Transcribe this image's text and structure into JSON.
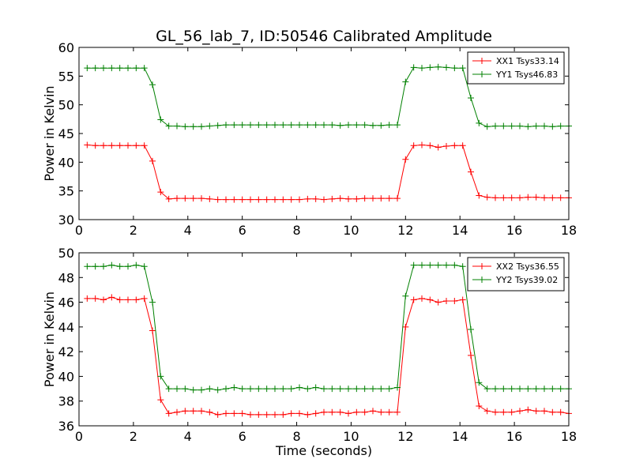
{
  "figure": {
    "title": "GL_56_lab_7, ID:50546 Calibrated Amplitude"
  },
  "chart_data": [
    {
      "type": "line",
      "title": "GL_56_lab_7, ID:50546 Calibrated Amplitude",
      "xlabel": "",
      "ylabel": "Power in Kelvin",
      "xlim": [
        0,
        18
      ],
      "ylim": [
        30,
        60
      ],
      "xticks": [
        0,
        2,
        4,
        6,
        8,
        10,
        12,
        14,
        16,
        18
      ],
      "yticks": [
        30,
        35,
        40,
        45,
        50,
        55,
        60
      ],
      "grid": false,
      "legend": "top-right",
      "x": [
        0.3,
        0.6,
        0.9,
        1.2,
        1.5,
        1.8,
        2.1,
        2.4,
        2.7,
        3.0,
        3.3,
        3.6,
        3.9,
        4.2,
        4.5,
        4.8,
        5.1,
        5.4,
        5.7,
        6.0,
        6.3,
        6.6,
        6.9,
        7.2,
        7.5,
        7.8,
        8.1,
        8.4,
        8.7,
        9.0,
        9.3,
        9.6,
        9.9,
        10.2,
        10.5,
        10.8,
        11.1,
        11.4,
        11.7,
        12.0,
        12.3,
        12.6,
        12.9,
        13.2,
        13.5,
        13.8,
        14.1,
        14.4,
        14.7,
        15.0,
        15.3,
        15.6,
        15.9,
        16.2,
        16.5,
        16.8,
        17.1,
        17.4,
        17.7,
        18.0
      ],
      "series": [
        {
          "name": "XX1 Tsys33.14",
          "color": "#ff0000",
          "values": [
            43.0,
            42.9,
            42.9,
            42.9,
            42.9,
            42.9,
            42.9,
            42.9,
            40.2,
            34.8,
            33.6,
            33.7,
            33.7,
            33.7,
            33.7,
            33.6,
            33.5,
            33.5,
            33.5,
            33.5,
            33.5,
            33.5,
            33.5,
            33.5,
            33.5,
            33.5,
            33.5,
            33.6,
            33.6,
            33.5,
            33.6,
            33.7,
            33.6,
            33.6,
            33.7,
            33.7,
            33.7,
            33.7,
            33.7,
            40.5,
            42.9,
            43.0,
            42.9,
            42.6,
            42.8,
            42.9,
            42.9,
            38.3,
            34.2,
            33.9,
            33.8,
            33.8,
            33.8,
            33.8,
            33.9,
            33.9,
            33.8,
            33.8,
            33.8,
            33.8
          ]
        },
        {
          "name": "YY1 Tsys46.83",
          "color": "#008000",
          "values": [
            56.4,
            56.4,
            56.4,
            56.4,
            56.4,
            56.4,
            56.4,
            56.4,
            53.5,
            47.4,
            46.3,
            46.3,
            46.2,
            46.2,
            46.2,
            46.3,
            46.4,
            46.5,
            46.5,
            46.5,
            46.5,
            46.5,
            46.5,
            46.5,
            46.5,
            46.5,
            46.5,
            46.5,
            46.5,
            46.5,
            46.5,
            46.4,
            46.5,
            46.5,
            46.5,
            46.4,
            46.4,
            46.5,
            46.5,
            54.0,
            56.5,
            56.4,
            56.5,
            56.6,
            56.5,
            56.4,
            56.4,
            51.2,
            46.8,
            46.2,
            46.3,
            46.3,
            46.3,
            46.3,
            46.2,
            46.3,
            46.3,
            46.2,
            46.3,
            46.3
          ]
        }
      ]
    },
    {
      "type": "line",
      "xlabel": "Time (seconds)",
      "ylabel": "Power in Kelvin",
      "xlim": [
        0,
        18
      ],
      "ylim": [
        36,
        50
      ],
      "xticks": [
        0,
        2,
        4,
        6,
        8,
        10,
        12,
        14,
        16,
        18
      ],
      "yticks": [
        36,
        38,
        40,
        42,
        44,
        46,
        48,
        50
      ],
      "grid": false,
      "legend": "top-right",
      "x": [
        0.3,
        0.6,
        0.9,
        1.2,
        1.5,
        1.8,
        2.1,
        2.4,
        2.7,
        3.0,
        3.3,
        3.6,
        3.9,
        4.2,
        4.5,
        4.8,
        5.1,
        5.4,
        5.7,
        6.0,
        6.3,
        6.6,
        6.9,
        7.2,
        7.5,
        7.8,
        8.1,
        8.4,
        8.7,
        9.0,
        9.3,
        9.6,
        9.9,
        10.2,
        10.5,
        10.8,
        11.1,
        11.4,
        11.7,
        12.0,
        12.3,
        12.6,
        12.9,
        13.2,
        13.5,
        13.8,
        14.1,
        14.4,
        14.7,
        15.0,
        15.3,
        15.6,
        15.9,
        16.2,
        16.5,
        16.8,
        17.1,
        17.4,
        17.7,
        18.0
      ],
      "series": [
        {
          "name": "XX2 Tsys36.55",
          "color": "#ff0000",
          "values": [
            46.3,
            46.3,
            46.2,
            46.4,
            46.2,
            46.2,
            46.2,
            46.3,
            43.7,
            38.1,
            37.0,
            37.1,
            37.2,
            37.2,
            37.2,
            37.1,
            36.9,
            37.0,
            37.0,
            37.0,
            36.9,
            36.9,
            36.9,
            36.9,
            36.9,
            37.0,
            37.0,
            36.9,
            37.0,
            37.1,
            37.1,
            37.1,
            37.0,
            37.1,
            37.1,
            37.2,
            37.1,
            37.1,
            37.1,
            44.0,
            46.2,
            46.3,
            46.2,
            46.0,
            46.1,
            46.1,
            46.2,
            41.7,
            37.6,
            37.2,
            37.1,
            37.1,
            37.1,
            37.2,
            37.3,
            37.2,
            37.2,
            37.1,
            37.1,
            37.0
          ]
        },
        {
          "name": "YY2 Tsys39.02",
          "color": "#008000",
          "values": [
            48.9,
            48.9,
            48.9,
            49.0,
            48.9,
            48.9,
            49.0,
            48.9,
            46.0,
            40.0,
            39.0,
            39.0,
            39.0,
            38.9,
            38.9,
            39.0,
            38.9,
            39.0,
            39.1,
            39.0,
            39.0,
            39.0,
            39.0,
            39.0,
            39.0,
            39.0,
            39.1,
            39.0,
            39.1,
            39.0,
            39.0,
            39.0,
            39.0,
            39.0,
            39.0,
            39.0,
            39.0,
            39.0,
            39.1,
            46.5,
            49.0,
            49.0,
            49.0,
            49.0,
            49.0,
            49.0,
            48.9,
            43.8,
            39.5,
            39.0,
            39.0,
            39.0,
            39.0,
            39.0,
            39.0,
            39.0,
            39.0,
            39.0,
            39.0,
            39.0
          ]
        }
      ]
    }
  ]
}
